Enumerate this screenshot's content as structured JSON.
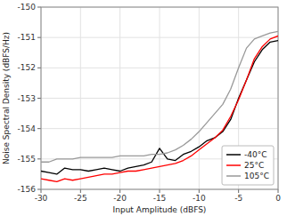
{
  "chart_data": {
    "type": "line",
    "xlabel": "Input Amplitude (dBFS)",
    "ylabel": "Noise Spectral Density (dBFS/Hz)",
    "x": [
      -30,
      -29,
      -28,
      -27,
      -26,
      -25,
      -24,
      -23,
      -22,
      -21,
      -20,
      -19,
      -18,
      -17,
      -16,
      -15,
      -14,
      -13,
      -12,
      -11,
      -10,
      -9,
      -8,
      -7,
      -6,
      -5,
      -4,
      -3,
      -2,
      -1,
      0
    ],
    "series": [
      {
        "name": "-40°C",
        "color": "black",
        "values": [
          -155.4,
          -155.45,
          -155.5,
          -155.3,
          -155.35,
          -155.35,
          -155.4,
          -155.35,
          -155.3,
          -155.35,
          -155.4,
          -155.3,
          -155.25,
          -155.2,
          -155.1,
          -154.65,
          -155.0,
          -155.05,
          -154.85,
          -154.75,
          -154.6,
          -154.4,
          -154.3,
          -154.1,
          -153.7,
          -153.0,
          -152.4,
          -151.8,
          -151.4,
          -151.15,
          -151.1
        ]
      },
      {
        "name": "25°C",
        "color": "red",
        "values": [
          -155.65,
          -155.7,
          -155.75,
          -155.65,
          -155.7,
          -155.65,
          -155.6,
          -155.55,
          -155.5,
          -155.5,
          -155.45,
          -155.4,
          -155.4,
          -155.35,
          -155.3,
          -155.25,
          -155.2,
          -155.15,
          -155.05,
          -154.9,
          -154.7,
          -154.5,
          -154.3,
          -154.05,
          -153.6,
          -153.05,
          -152.4,
          -151.7,
          -151.3,
          -151.05,
          -150.95
        ]
      },
      {
        "name": "105°C",
        "color": "#999999",
        "values": [
          -155.1,
          -155.1,
          -155.0,
          -155.0,
          -155.0,
          -154.95,
          -154.95,
          -154.95,
          -154.95,
          -154.95,
          -154.9,
          -154.9,
          -154.9,
          -154.9,
          -154.85,
          -154.85,
          -154.8,
          -154.7,
          -154.55,
          -154.35,
          -154.1,
          -153.8,
          -153.5,
          -153.2,
          -152.7,
          -152.0,
          -151.35,
          -151.05,
          -150.95,
          -150.85,
          -150.8
        ]
      }
    ],
    "xlim": [
      -30,
      0
    ],
    "ylim": [
      -156,
      -150
    ],
    "xticks": [
      -30,
      -25,
      -20,
      -15,
      -10,
      -5,
      0
    ],
    "yticks": [
      -156,
      -155,
      -154,
      -153,
      -152,
      -151,
      -150
    ],
    "grid": true,
    "legend": "lower right"
  }
}
